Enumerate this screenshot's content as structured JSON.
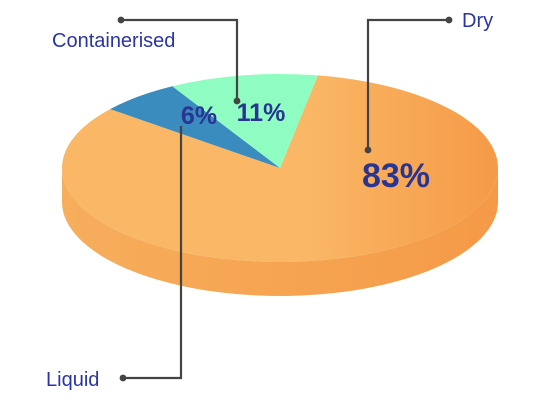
{
  "chart_data": {
    "type": "pie",
    "style": "3d",
    "title": "",
    "slices": [
      {
        "label": "Dry",
        "value": 83,
        "display": "83%",
        "color": "#fab866",
        "color_dark": "#f59a47",
        "side_color": "#f6ae5c"
      },
      {
        "label": "Liquid",
        "value": 6,
        "display": "6%",
        "color": "#3a8bbe",
        "side_color": "#2f77a6"
      },
      {
        "label": "Containerised",
        "value": 11,
        "display": "11%",
        "color": "#8ffdc1",
        "side_color": "#6fdea2"
      }
    ],
    "label_color": "#2a35a4",
    "percent_color": "#283593",
    "leader_color": "#444444",
    "legend": "callouts"
  }
}
